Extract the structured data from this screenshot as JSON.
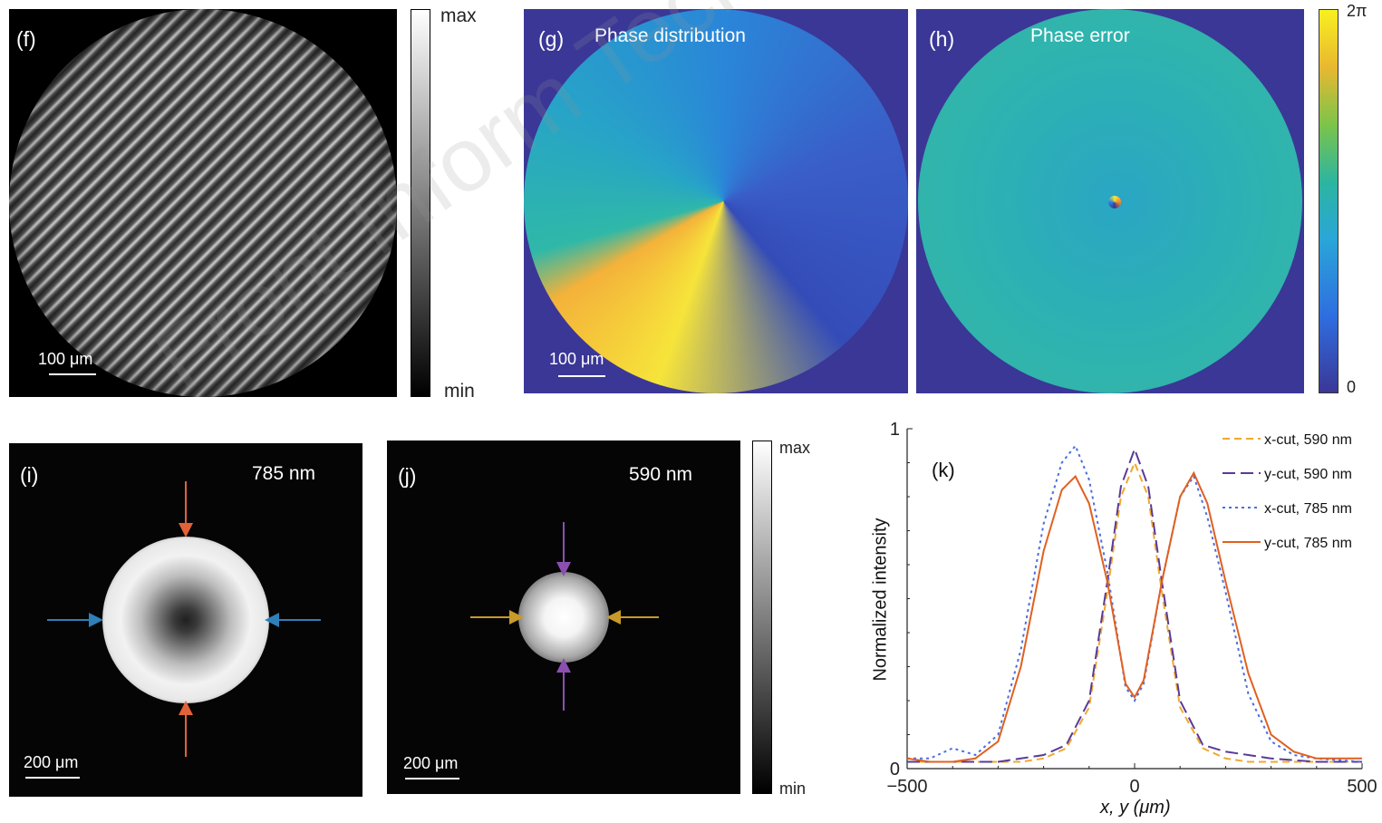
{
  "panels": {
    "f": {
      "label": "(f)",
      "scale": "100 μm",
      "cbar_max": "max",
      "cbar_min": "min"
    },
    "g": {
      "label": "(g)",
      "title": "Phase distribution",
      "scale": "100 μm"
    },
    "h": {
      "label": "(h)",
      "title": "Phase error",
      "cbar_max": "2π",
      "cbar_min": "0"
    },
    "i": {
      "label": "(i)",
      "wavelength": "785 nm",
      "scale": "200 μm",
      "arrow_colors": {
        "vertical": "#e0623a",
        "horizontal": "#2f7fb8"
      }
    },
    "j": {
      "label": "(j)",
      "wavelength": "590 nm",
      "scale": "200 μm",
      "cbar_max": "max",
      "cbar_min": "min",
      "arrow_colors": {
        "vertical": "#8a4fb0",
        "horizontal": "#c79a2a"
      }
    },
    "k": {
      "label": "(k)"
    }
  },
  "watermark": "Front Inform Technol Electro",
  "chart_data": {
    "type": "line",
    "xlabel": "x, y (μm)",
    "ylabel": "Normalized intensity",
    "xlim": [
      -500,
      500
    ],
    "ylim": [
      0,
      1
    ],
    "xticks": [
      "−500",
      "0",
      "500"
    ],
    "yticks": [
      "0",
      "1"
    ],
    "legend_position": "top-right",
    "series": [
      {
        "name": "x-cut, 590 nm",
        "color": "#f0a830",
        "dash": "8,5",
        "x": [
          -500,
          -400,
          -300,
          -250,
          -200,
          -150,
          -100,
          -60,
          -30,
          0,
          30,
          60,
          100,
          150,
          200,
          250,
          300,
          400,
          500
        ],
        "y": [
          0.02,
          0.02,
          0.02,
          0.02,
          0.03,
          0.06,
          0.18,
          0.52,
          0.8,
          0.9,
          0.8,
          0.52,
          0.18,
          0.06,
          0.03,
          0.02,
          0.02,
          0.02,
          0.02
        ]
      },
      {
        "name": "y-cut, 590 nm",
        "color": "#5a3a98",
        "dash": "14,6",
        "x": [
          -500,
          -400,
          -300,
          -250,
          -200,
          -150,
          -100,
          -60,
          -30,
          0,
          30,
          60,
          100,
          150,
          200,
          250,
          300,
          400,
          500
        ],
        "y": [
          0.02,
          0.02,
          0.02,
          0.03,
          0.04,
          0.07,
          0.2,
          0.55,
          0.83,
          0.94,
          0.83,
          0.55,
          0.2,
          0.07,
          0.05,
          0.04,
          0.03,
          0.02,
          0.02
        ]
      },
      {
        "name": "x-cut, 785 nm",
        "color": "#4a6fe0",
        "dash": "3,4",
        "x": [
          -500,
          -450,
          -400,
          -350,
          -300,
          -250,
          -200,
          -160,
          -130,
          -100,
          -60,
          -20,
          0,
          20,
          60,
          100,
          130,
          160,
          200,
          250,
          300,
          350,
          400,
          500
        ],
        "y": [
          0.03,
          0.03,
          0.06,
          0.04,
          0.1,
          0.35,
          0.72,
          0.9,
          0.95,
          0.85,
          0.58,
          0.24,
          0.2,
          0.25,
          0.55,
          0.8,
          0.86,
          0.74,
          0.52,
          0.22,
          0.08,
          0.04,
          0.03,
          0.02
        ]
      },
      {
        "name": "y-cut, 785 nm",
        "color": "#e06020",
        "dash": "",
        "x": [
          -500,
          -450,
          -400,
          -350,
          -300,
          -250,
          -200,
          -160,
          -130,
          -100,
          -60,
          -20,
          0,
          20,
          60,
          100,
          130,
          160,
          200,
          250,
          300,
          350,
          400,
          500
        ],
        "y": [
          0.03,
          0.02,
          0.02,
          0.03,
          0.08,
          0.3,
          0.64,
          0.82,
          0.86,
          0.78,
          0.55,
          0.25,
          0.21,
          0.26,
          0.55,
          0.8,
          0.87,
          0.78,
          0.55,
          0.28,
          0.1,
          0.05,
          0.03,
          0.03
        ]
      }
    ]
  }
}
